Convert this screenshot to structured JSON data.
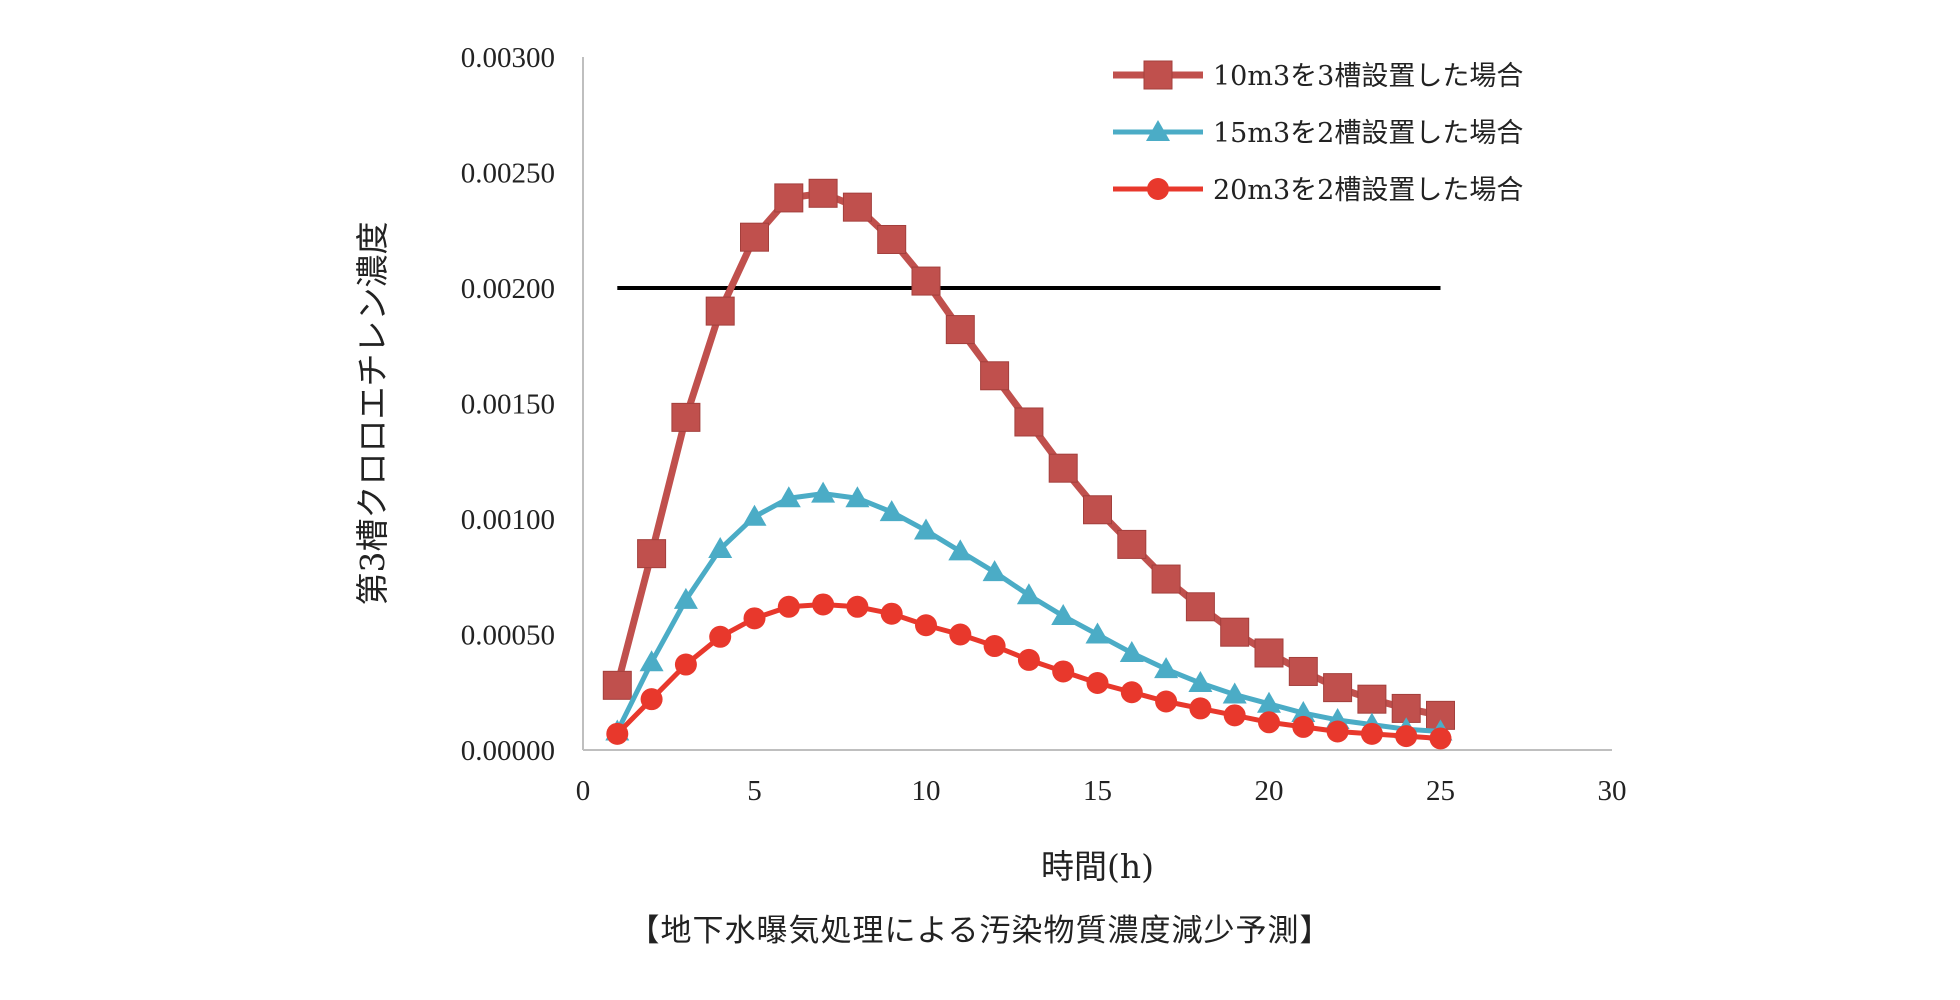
{
  "caption": "【地下水曝気処理による汚染物質濃度減少予測】",
  "chart_data": {
    "type": "line",
    "xlabel": "時間(h)",
    "ylabel": "第3槽クロロエチレン濃度",
    "xlim": [
      0,
      30
    ],
    "ylim": [
      0,
      0.003
    ],
    "x_ticks": [
      "0",
      "5",
      "10",
      "15",
      "20",
      "25",
      "30"
    ],
    "y_ticks": [
      "0.00000",
      "0.00050",
      "0.00100",
      "0.00150",
      "0.00200",
      "0.00250",
      "0.00300"
    ],
    "grid": false,
    "legend_position": "top-right",
    "reference_line": {
      "y": 0.002,
      "x_start": 1,
      "x_end": 25,
      "color": "#000000"
    },
    "x": [
      1,
      2,
      3,
      4,
      5,
      6,
      7,
      8,
      9,
      10,
      11,
      12,
      13,
      14,
      15,
      16,
      17,
      18,
      19,
      20,
      21,
      22,
      23,
      24,
      25
    ],
    "series": [
      {
        "name": "10m3を3槽設置した場合",
        "color": "#c0504d",
        "marker": "square",
        "values": [
          0.00028,
          0.00085,
          0.00144,
          0.0019,
          0.00222,
          0.00239,
          0.00241,
          0.00235,
          0.00221,
          0.00203,
          0.00182,
          0.00162,
          0.00142,
          0.00122,
          0.00104,
          0.00089,
          0.00074,
          0.00062,
          0.00051,
          0.00042,
          0.00034,
          0.00027,
          0.00022,
          0.00018,
          0.00015
        ]
      },
      {
        "name": "15m3を2槽設置した場合",
        "color": "#4bacc6",
        "marker": "triangle",
        "values": [
          8e-05,
          0.00038,
          0.00065,
          0.00087,
          0.00101,
          0.00109,
          0.00111,
          0.00109,
          0.00103,
          0.00095,
          0.00086,
          0.00077,
          0.00067,
          0.00058,
          0.0005,
          0.00042,
          0.00035,
          0.00029,
          0.00024,
          0.0002,
          0.00016,
          0.00013,
          0.00011,
          9e-05,
          8e-05
        ]
      },
      {
        "name": "20m3を2槽設置した場合",
        "color": "#e8382c",
        "marker": "circle",
        "values": [
          7e-05,
          0.00022,
          0.00037,
          0.00049,
          0.00057,
          0.00062,
          0.00063,
          0.00062,
          0.00059,
          0.00054,
          0.0005,
          0.00045,
          0.00039,
          0.00034,
          0.00029,
          0.00025,
          0.00021,
          0.00018,
          0.00015,
          0.00012,
          0.0001,
          8e-05,
          7e-05,
          6e-05,
          5e-05
        ]
      }
    ]
  }
}
